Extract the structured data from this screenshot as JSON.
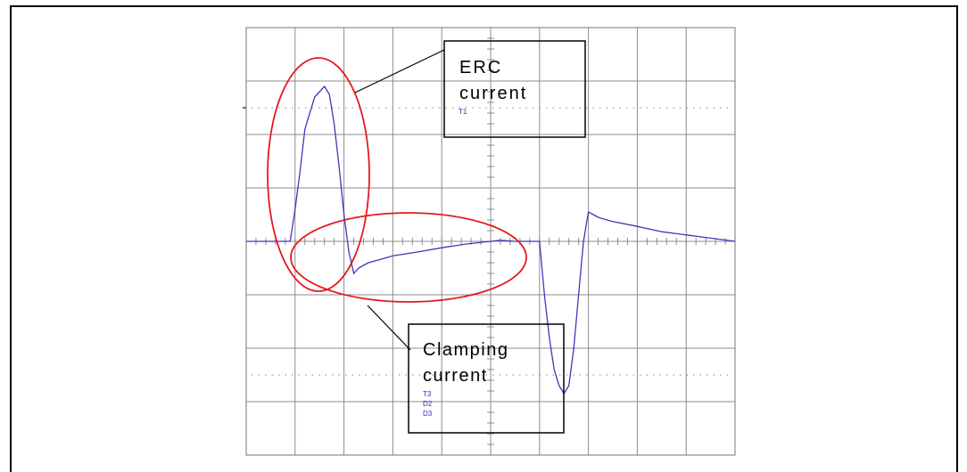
{
  "colors": {
    "trace": "#3a3ab8",
    "grid": "#8c8c8c",
    "dots": "#9a9a9a",
    "highlight": "#e41a1c",
    "frame": "#000000"
  },
  "callouts": {
    "erc": {
      "line1": "ERC",
      "line2": "current"
    },
    "clamping": {
      "line1": "Clamping",
      "line2": "current"
    }
  },
  "markers": {
    "top": [
      "T1"
    ],
    "bottom": [
      "T3",
      "D2",
      "D3"
    ]
  },
  "chart_data": {
    "type": "line",
    "title": "",
    "xlabel": "",
    "ylabel": "",
    "xlim": [
      0,
      10
    ],
    "ylim": [
      -4,
      4
    ],
    "grid": true,
    "x_divisions": 10,
    "y_divisions": 8,
    "series": [
      {
        "x": [
          0,
          0.9,
          1.0,
          1.1,
          1.2,
          1.4,
          1.6,
          1.7,
          1.8,
          1.9,
          2.0,
          2.1,
          2.2,
          2.3,
          2.4,
          2.5,
          2.7,
          3.0,
          3.5,
          4.0,
          4.5,
          5.0,
          5.2,
          5.5,
          5.8,
          5.9,
          6.0,
          6.1,
          6.2,
          6.3,
          6.4,
          6.5,
          6.6,
          6.7,
          6.8,
          6.9,
          7.0,
          7.1,
          7.2,
          7.3,
          7.5,
          8.0,
          8.5,
          9.0,
          9.5,
          10.0
        ],
        "y": [
          0,
          0,
          0.6,
          1.3,
          2.1,
          2.7,
          2.9,
          2.75,
          2.2,
          1.4,
          0.5,
          -0.2,
          -0.6,
          -0.5,
          -0.45,
          -0.4,
          -0.35,
          -0.27,
          -0.2,
          -0.12,
          -0.05,
          0,
          0.02,
          0,
          0,
          0,
          0,
          -1.0,
          -1.8,
          -2.4,
          -2.7,
          -2.85,
          -2.7,
          -2.0,
          -1.0,
          0,
          0.55,
          0.5,
          0.45,
          0.42,
          0.37,
          0.28,
          0.18,
          0.12,
          0.06,
          0.0
        ]
      }
    ],
    "annotations": [
      {
        "text": "ERC current",
        "shape": "ellipse"
      },
      {
        "text": "Clamping current",
        "shape": "ellipse"
      }
    ]
  }
}
